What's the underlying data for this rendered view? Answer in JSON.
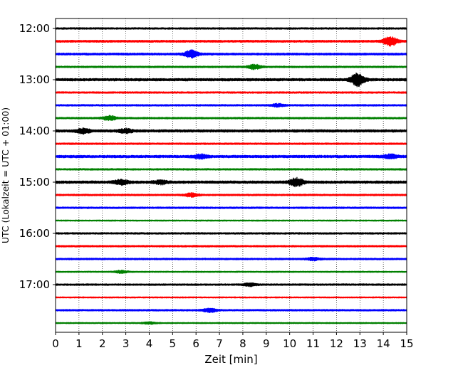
{
  "chart_data": {
    "type": "line",
    "title": "",
    "xlabel": "Zeit  [min]",
    "ylabel": "UTC (Lokalzeit = UTC + 01:00)",
    "xlim": [
      0,
      15
    ],
    "x_ticks": [
      0,
      1,
      2,
      3,
      4,
      5,
      6,
      7,
      8,
      9,
      10,
      11,
      12,
      13,
      14,
      15
    ],
    "y_tick_labels": [
      "12:00",
      "13:00",
      "14:00",
      "15:00",
      "16:00",
      "17:00"
    ],
    "trace_start": "12:00",
    "trace_interval_min": 15,
    "trace_count": 24,
    "series_colors": [
      "#000000",
      "#ff0000",
      "#0000ff",
      "#008000"
    ],
    "grid": {
      "x": true,
      "y": false,
      "style": "dotted"
    },
    "traces": [
      {
        "start": "12:00",
        "amplitude": 0.2,
        "events": []
      },
      {
        "start": "12:15",
        "amplitude": 0.25,
        "events": [
          {
            "t": 14.3,
            "amp": 1.0
          }
        ]
      },
      {
        "start": "12:30",
        "amplitude": 0.25,
        "events": [
          {
            "t": 5.8,
            "amp": 0.8
          }
        ]
      },
      {
        "start": "12:45",
        "amplitude": 0.2,
        "events": [
          {
            "t": 8.5,
            "amp": 0.5
          }
        ]
      },
      {
        "start": "13:00",
        "amplitude": 0.3,
        "events": [
          {
            "t": 12.9,
            "amp": 1.4
          }
        ]
      },
      {
        "start": "13:15",
        "amplitude": 0.2,
        "events": []
      },
      {
        "start": "13:30",
        "amplitude": 0.2,
        "events": [
          {
            "t": 9.5,
            "amp": 0.3
          }
        ]
      },
      {
        "start": "13:45",
        "amplitude": 0.2,
        "events": [
          {
            "t": 2.3,
            "amp": 0.5
          }
        ]
      },
      {
        "start": "14:00",
        "amplitude": 0.3,
        "events": [
          {
            "t": 1.2,
            "amp": 0.5
          },
          {
            "t": 3.0,
            "amp": 0.4
          }
        ]
      },
      {
        "start": "14:15",
        "amplitude": 0.2,
        "events": []
      },
      {
        "start": "14:30",
        "amplitude": 0.3,
        "events": [
          {
            "t": 6.2,
            "amp": 0.4
          },
          {
            "t": 14.3,
            "amp": 0.4
          }
        ]
      },
      {
        "start": "14:45",
        "amplitude": 0.2,
        "events": []
      },
      {
        "start": "15:00",
        "amplitude": 0.3,
        "events": [
          {
            "t": 2.8,
            "amp": 0.5
          },
          {
            "t": 4.5,
            "amp": 0.4
          },
          {
            "t": 10.3,
            "amp": 0.9
          }
        ]
      },
      {
        "start": "15:15",
        "amplitude": 0.2,
        "events": [
          {
            "t": 5.8,
            "amp": 0.4
          }
        ]
      },
      {
        "start": "15:30",
        "amplitude": 0.2,
        "events": []
      },
      {
        "start": "15:45",
        "amplitude": 0.15,
        "events": []
      },
      {
        "start": "16:00",
        "amplitude": 0.2,
        "events": []
      },
      {
        "start": "16:15",
        "amplitude": 0.2,
        "events": []
      },
      {
        "start": "16:30",
        "amplitude": 0.2,
        "events": [
          {
            "t": 11.0,
            "amp": 0.3
          }
        ]
      },
      {
        "start": "16:45",
        "amplitude": 0.15,
        "events": [
          {
            "t": 2.8,
            "amp": 0.3
          }
        ]
      },
      {
        "start": "17:00",
        "amplitude": 0.2,
        "events": [
          {
            "t": 8.3,
            "amp": 0.3
          }
        ]
      },
      {
        "start": "17:15",
        "amplitude": 0.15,
        "events": []
      },
      {
        "start": "17:30",
        "amplitude": 0.2,
        "events": [
          {
            "t": 6.6,
            "amp": 0.4
          }
        ]
      },
      {
        "start": "17:45",
        "amplitude": 0.15,
        "events": [
          {
            "t": 4.0,
            "amp": 0.2
          }
        ]
      }
    ]
  }
}
